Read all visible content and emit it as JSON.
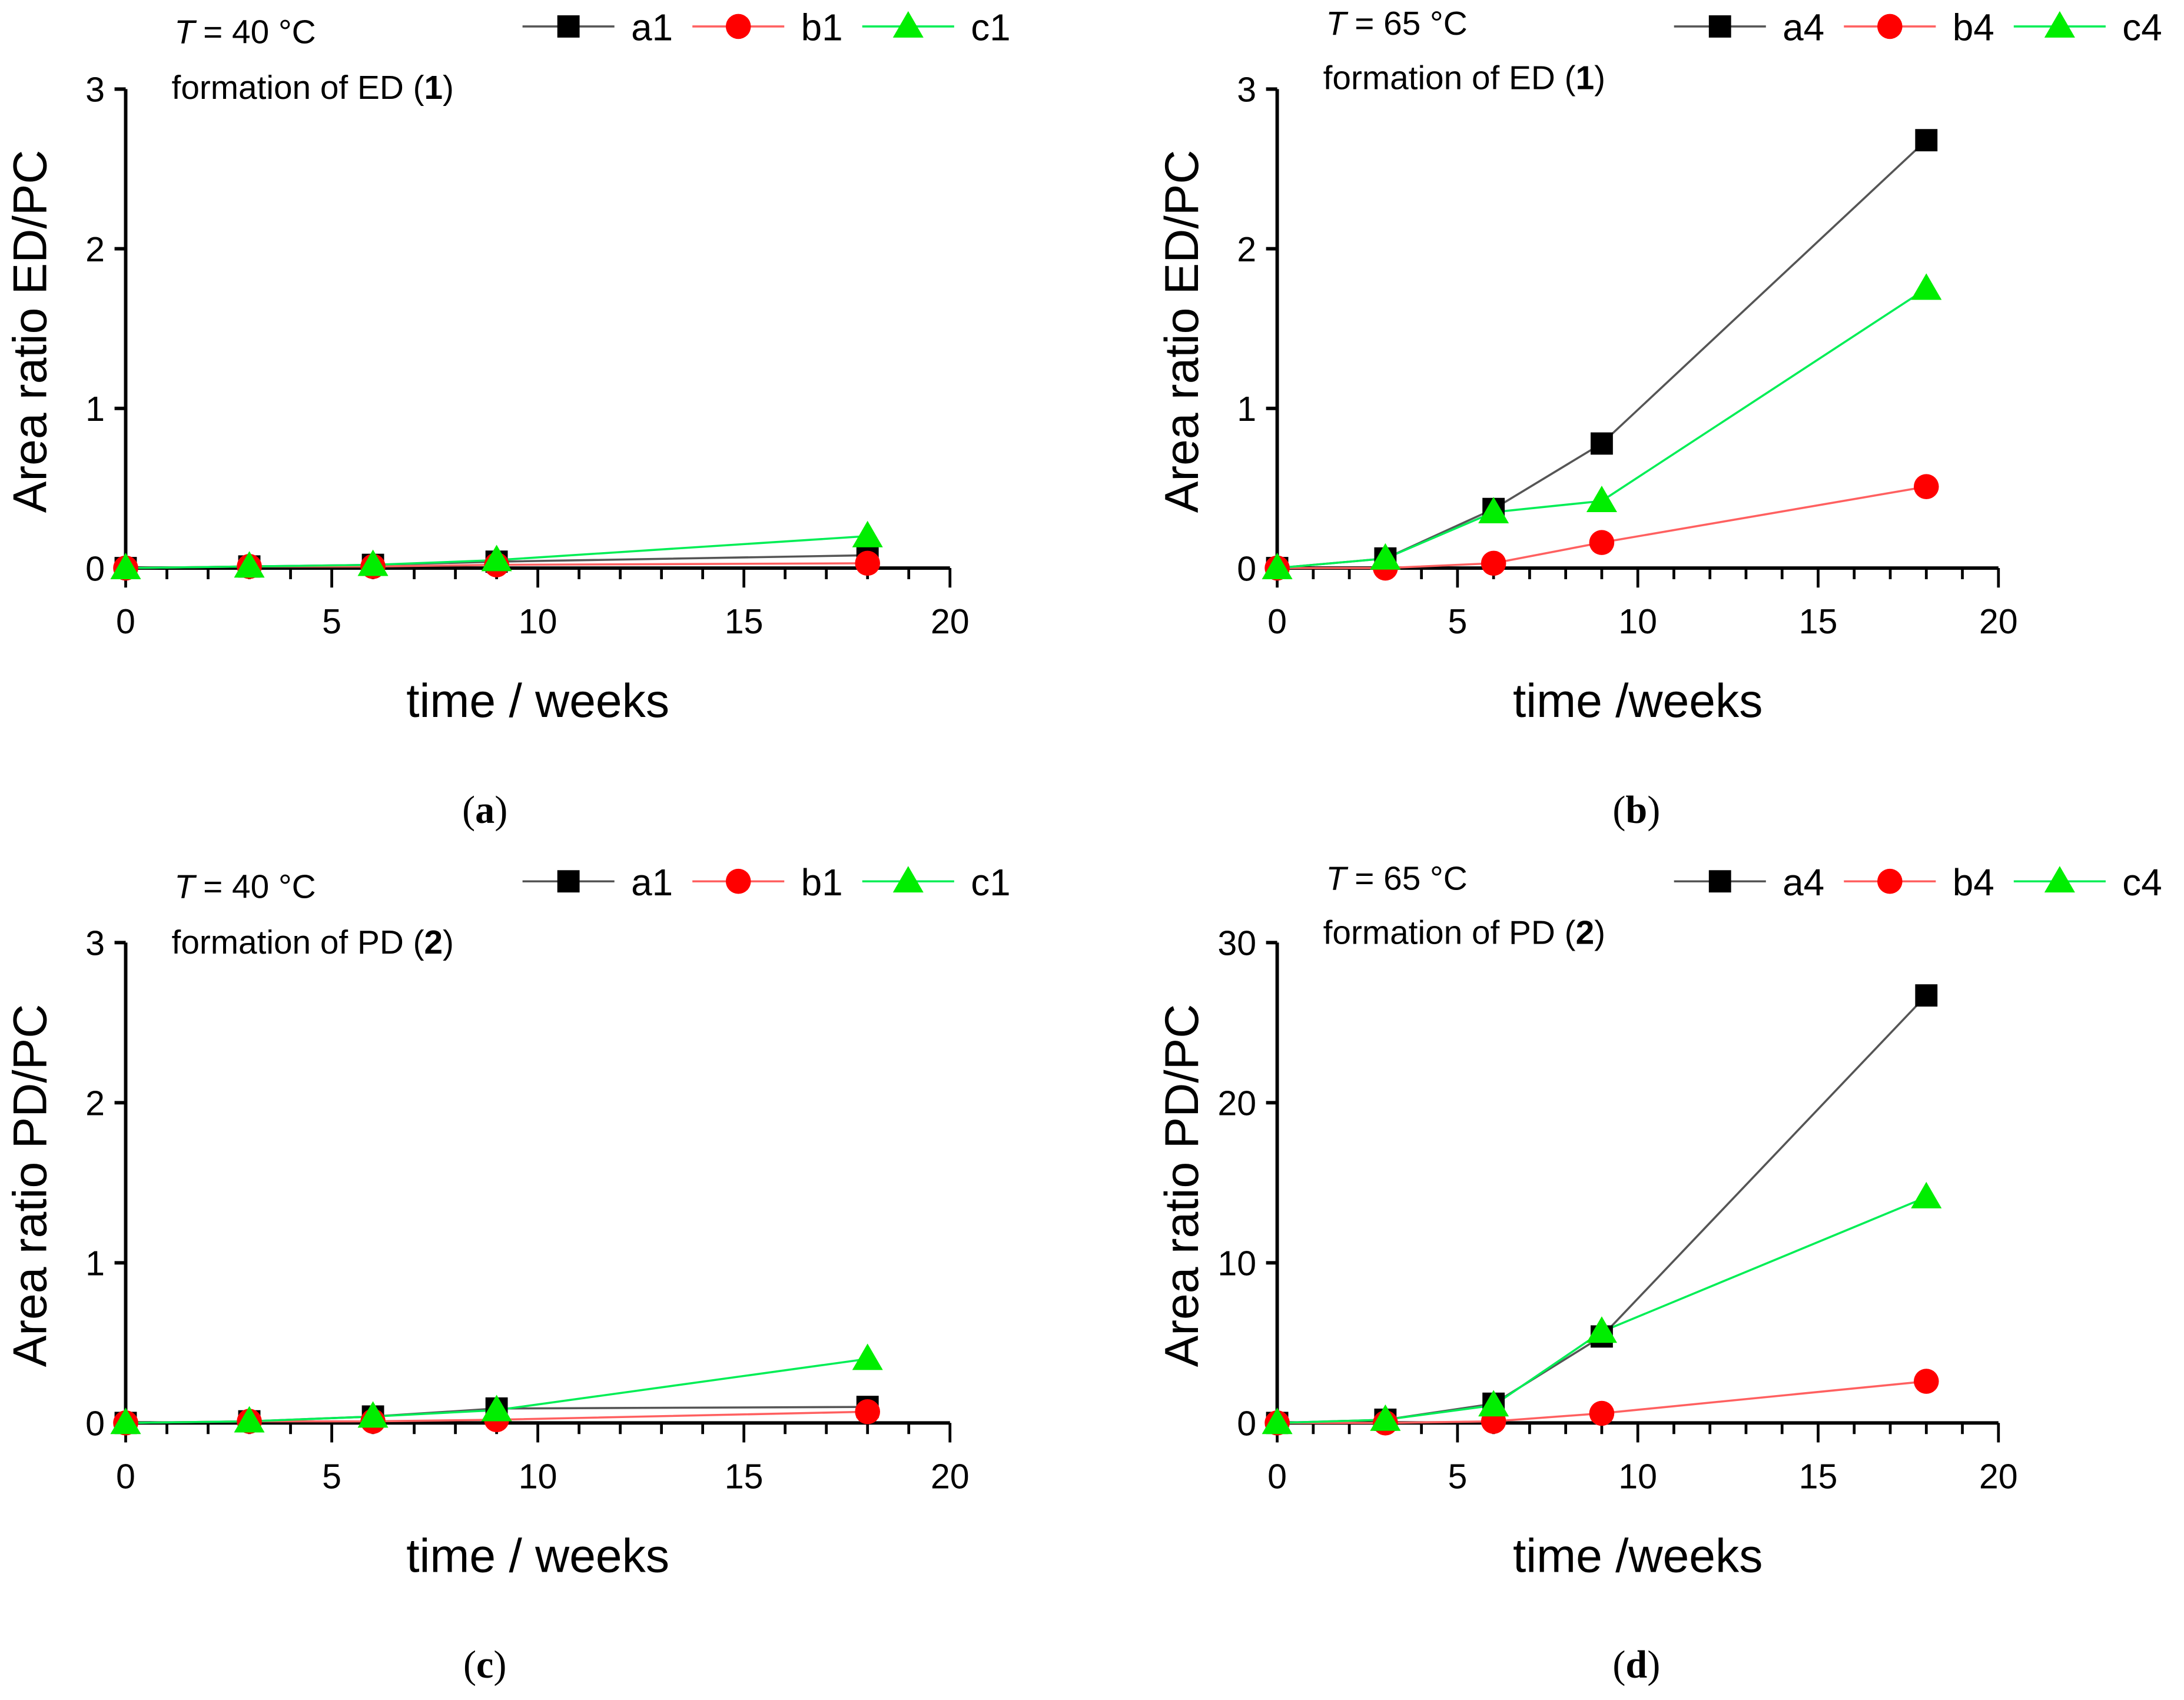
{
  "colors": {
    "a": "#000000",
    "b": "#ff0000",
    "c": "#00ee00",
    "line_a": "#555555",
    "line_b": "#ff6060",
    "line_c": "#00ee55"
  },
  "chart_data": [
    {
      "type": "line",
      "panel_label": "a",
      "temp_var": "T",
      "temp_value": "= 40 °C",
      "formation_text": "formation of ED",
      "compound": "1",
      "xlabel": "time / weeks",
      "ylabel": "Area ratio ED/PC",
      "xlim": [
        0,
        20
      ],
      "ylim": [
        0,
        3
      ],
      "xticks": [
        "0",
        "5",
        "10",
        "15",
        "20"
      ],
      "yticks": [
        "0",
        "1",
        "2",
        "3"
      ],
      "legend_position": "top-right",
      "x": [
        0,
        3,
        6,
        9,
        18
      ],
      "series": [
        {
          "name": "a1",
          "values": [
            0,
            0.01,
            0.02,
            0.04,
            0.08
          ]
        },
        {
          "name": "b1",
          "values": [
            0,
            0.01,
            0.01,
            0.02,
            0.03
          ]
        },
        {
          "name": "c1",
          "values": [
            0,
            0.01,
            0.02,
            0.05,
            0.2
          ]
        }
      ]
    },
    {
      "type": "line",
      "panel_label": "b",
      "temp_var": "T",
      "temp_value": "= 65 °C",
      "formation_text": "formation of ED",
      "compound": "1",
      "xlabel": "time /weeks",
      "ylabel": "Area ratio ED/PC",
      "xlim": [
        0,
        20
      ],
      "ylim": [
        0,
        3
      ],
      "xticks": [
        "0",
        "5",
        "10",
        "15",
        "20"
      ],
      "yticks": [
        "0",
        "1",
        "2",
        "3"
      ],
      "legend_position": "top-right",
      "x": [
        0,
        3,
        6,
        9,
        18
      ],
      "series": [
        {
          "name": "a4",
          "values": [
            0,
            0.06,
            0.37,
            0.78,
            2.68
          ]
        },
        {
          "name": "b4",
          "values": [
            0,
            0,
            0.03,
            0.16,
            0.51
          ]
        },
        {
          "name": "c4",
          "values": [
            0,
            0.06,
            0.35,
            0.42,
            1.75
          ]
        }
      ]
    },
    {
      "type": "line",
      "panel_label": "c",
      "temp_var": "T",
      "temp_value": "= 40 °C",
      "formation_text": "formation of PD",
      "compound": "2",
      "xlabel": "time / weeks",
      "ylabel": "Area ratio PD/PC",
      "xlim": [
        0,
        20
      ],
      "ylim": [
        0,
        3
      ],
      "xticks": [
        "0",
        "5",
        "10",
        "15",
        "20"
      ],
      "yticks": [
        "0",
        "1",
        "2",
        "3"
      ],
      "legend_position": "top-right",
      "x": [
        0,
        3,
        6,
        9,
        18
      ],
      "series": [
        {
          "name": "a1",
          "values": [
            0,
            0.01,
            0.04,
            0.09,
            0.1
          ]
        },
        {
          "name": "b1",
          "values": [
            0,
            0.01,
            0.01,
            0.02,
            0.07
          ]
        },
        {
          "name": "c1",
          "values": [
            0,
            0.01,
            0.04,
            0.08,
            0.4
          ]
        }
      ]
    },
    {
      "type": "line",
      "panel_label": "d",
      "temp_var": "T",
      "temp_value": "= 65 °C",
      "formation_text": "formation of PD",
      "compound": "2",
      "xlabel": "time /weeks",
      "ylabel": "Area ratio PD/PC",
      "xlim": [
        0,
        20
      ],
      "ylim": [
        0,
        30
      ],
      "xticks": [
        "0",
        "5",
        "10",
        "15",
        "20"
      ],
      "yticks": [
        "0",
        "10",
        "20",
        "30"
      ],
      "legend_position": "top-right",
      "x": [
        0,
        3,
        6,
        9,
        18
      ],
      "series": [
        {
          "name": "a4",
          "values": [
            0,
            0.2,
            1.2,
            5.4,
            26.7
          ]
        },
        {
          "name": "b4",
          "values": [
            0,
            0,
            0.1,
            0.6,
            2.6
          ]
        },
        {
          "name": "c4",
          "values": [
            0,
            0.2,
            1.1,
            5.7,
            14.1
          ]
        }
      ]
    }
  ]
}
